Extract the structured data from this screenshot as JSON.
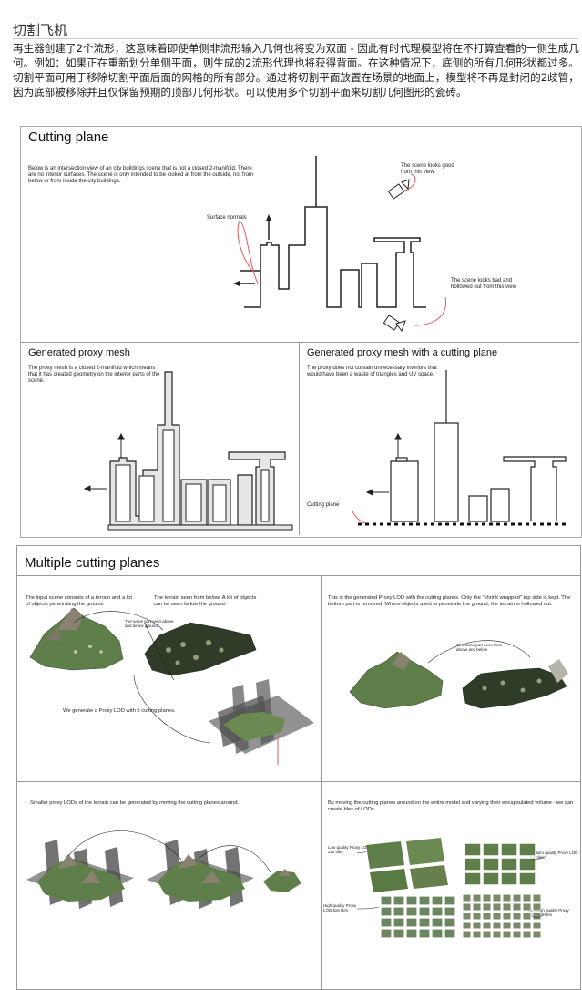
{
  "page": {
    "title": "切割飞机",
    "intro": "再生器创建了2个流形，这意味着即使单侧非流形输入几何也将变为双面 - 因此有时代理模型将在不打算查看的一侧生成几何。例如：如果正在重新划分单侧平面，则生成的2流形代理也将获得背面。在这种情况下，底侧的所有几何形状都过多。切割平面可用于移除切割平面后面的网格的所有部分。通过将切割平面放置在场景的地面上，模型将不再是封闭的2歧管，因为底部被移除并且仅保留预期的顶部几何形状。可以使用多个切割平面来切割几何图形的瓷砖。"
  },
  "figure1": {
    "title": "Cutting plane",
    "desc": "Below is an intersection view of an city buildings scene that is not a closed 2-manifold. There are no interior surfaces. The scene is only intended to be looked at from the outside, not from below or from inside the city buildings.",
    "label_good": "The scene looks good from this view",
    "label_normals": "Surface normals",
    "label_bad": "The scene looks bad and hollowed out from this view",
    "proxy_title": "Generated proxy mesh",
    "proxy_desc": "The proxy mesh is a closed 2-manifold which means that it has created geometry on the interior parts of the scene.",
    "cut_title": "Generated proxy mesh with a cutting plane",
    "cut_desc": "The proxy does not contain unnecessary interiors that would have been a waste of triangles and UV space.",
    "cut_label": "Cutting plane"
  },
  "figure2": {
    "title": "Multiple cutting planes",
    "q1_text1": "The input scene consists of a terrain and a lot of objects penetrating the ground.",
    "q1_text2": "The terrain seen from below. A lot of objects can be seen below the ground.",
    "q1_small": "The same part seen above and below ground",
    "q1_text3": "We generate a Proxy LOD with 5 cutting planes.",
    "q2_text": "This is the generated Proxy LOD with the cutting planes. Only the \"shrink wrapped\" top side is kept. The bottom part is removed. Where objects used to penetrate the ground, the terrain is hollowed out.",
    "q2_small": "The same part seen from above and below",
    "q3_text": "Smaller proxy LODs of the terrain can be generated by moving the cutting planes around.",
    "q4_text": "By moving the cutting planes around on the entire model and varying their encapsulated volume - we can create tiles of LODs.",
    "q4_low": "Low quality Proxy LOD 2x2 tiles",
    "q4_medium": "Medium quality Proxy LOD 4x4 tiles",
    "q4_high": "High quality Proxy LOD 6x6 tiles",
    "q4_veryhigh": "Very high quality Proxy LOD 8x8 tiles"
  },
  "colors": {
    "terrain_green": "#5f7f4a",
    "terrain_dark": "#2f3d28",
    "proxy_fill": "#e6e6e6",
    "arrow_red": "#e05a5a"
  }
}
